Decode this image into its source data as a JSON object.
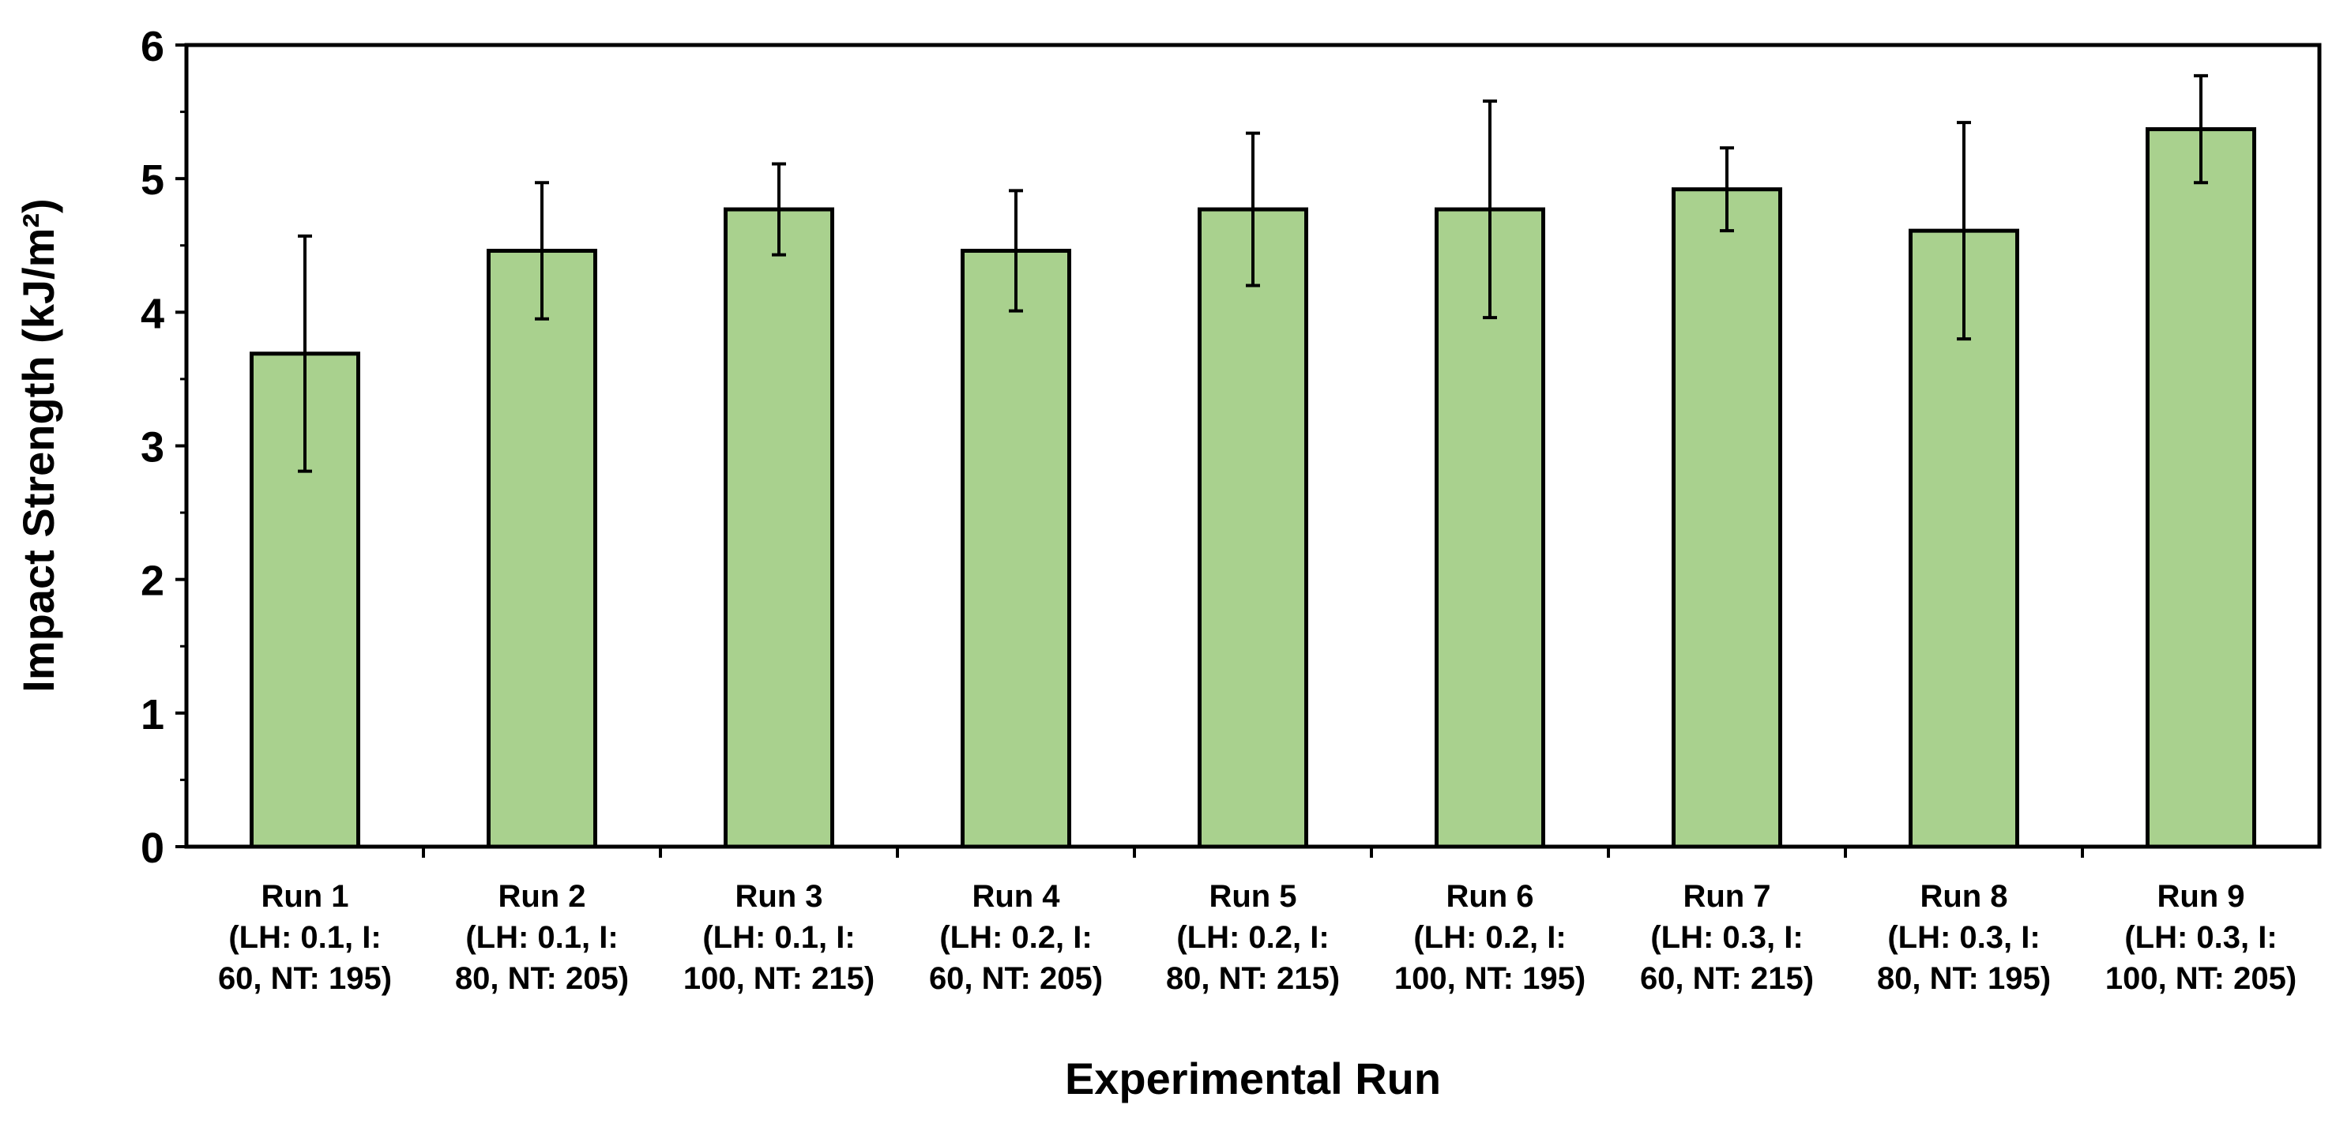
{
  "chart_data": {
    "type": "bar",
    "title": "",
    "xlabel": "Experimental Run",
    "ylabel": "Impact Strength (kJ/m²)",
    "ylim": [
      0,
      6
    ],
    "yticks": [
      "0",
      "1",
      "2",
      "3",
      "4",
      "5",
      "6"
    ],
    "grid": false,
    "legend": "none",
    "bar_color": "#a9d18e",
    "edge_color": "#000000",
    "categories": [
      [
        "Run 1",
        "(LH: 0.1, I:",
        "60, NT: 195)"
      ],
      [
        "Run 2",
        "(LH: 0.1, I:",
        "80, NT: 205)"
      ],
      [
        "Run 3",
        "(LH: 0.1, I:",
        "100, NT: 215)"
      ],
      [
        "Run 4",
        "(LH: 0.2, I:",
        "60, NT: 205)"
      ],
      [
        "Run 5",
        "(LH: 0.2, I:",
        "80, NT: 215)"
      ],
      [
        "Run 6",
        "(LH: 0.2, I:",
        "100, NT: 195)"
      ],
      [
        "Run 7",
        "(LH: 0.3, I:",
        "60, NT: 215)"
      ],
      [
        "Run 8",
        "(LH: 0.3, I:",
        "80, NT: 195)"
      ],
      [
        "Run 9",
        "(LH: 0.3, I:",
        "100, NT: 205)"
      ]
    ],
    "values": [
      3.69,
      4.46,
      4.77,
      4.46,
      4.77,
      4.77,
      4.92,
      4.61,
      5.37
    ],
    "errors": [
      0.88,
      0.51,
      0.34,
      0.45,
      0.57,
      0.81,
      0.31,
      0.81,
      0.4
    ]
  }
}
